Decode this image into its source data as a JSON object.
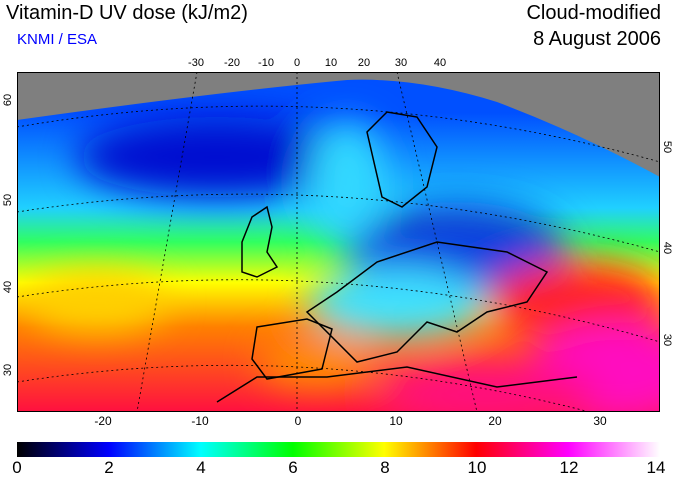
{
  "header": {
    "title": "Vitamin-D UV dose (kJ/m2)",
    "credit": "KNMI / ESA",
    "mode": "Cloud-modified",
    "date": "8 August 2006"
  },
  "axes": {
    "top_lon": [
      "-30",
      "-20",
      "-10",
      "0",
      "10",
      "20",
      "30",
      "40"
    ],
    "bottom_lon": [
      "-20",
      "-10",
      "0",
      "10",
      "20",
      "30"
    ],
    "left_lat": [
      "60",
      "50",
      "40",
      "30"
    ],
    "right_lat": [
      "50",
      "40",
      "30"
    ]
  },
  "colorbar": {
    "labels": [
      "0",
      "2",
      "4",
      "6",
      "8",
      "10",
      "12",
      "14"
    ],
    "min": 0,
    "max": 14,
    "colors": [
      "#000000",
      "#0000ff",
      "#00ffff",
      "#00ff00",
      "#ffff00",
      "#ff0000",
      "#ff00ff",
      "#ffffff"
    ]
  }
}
